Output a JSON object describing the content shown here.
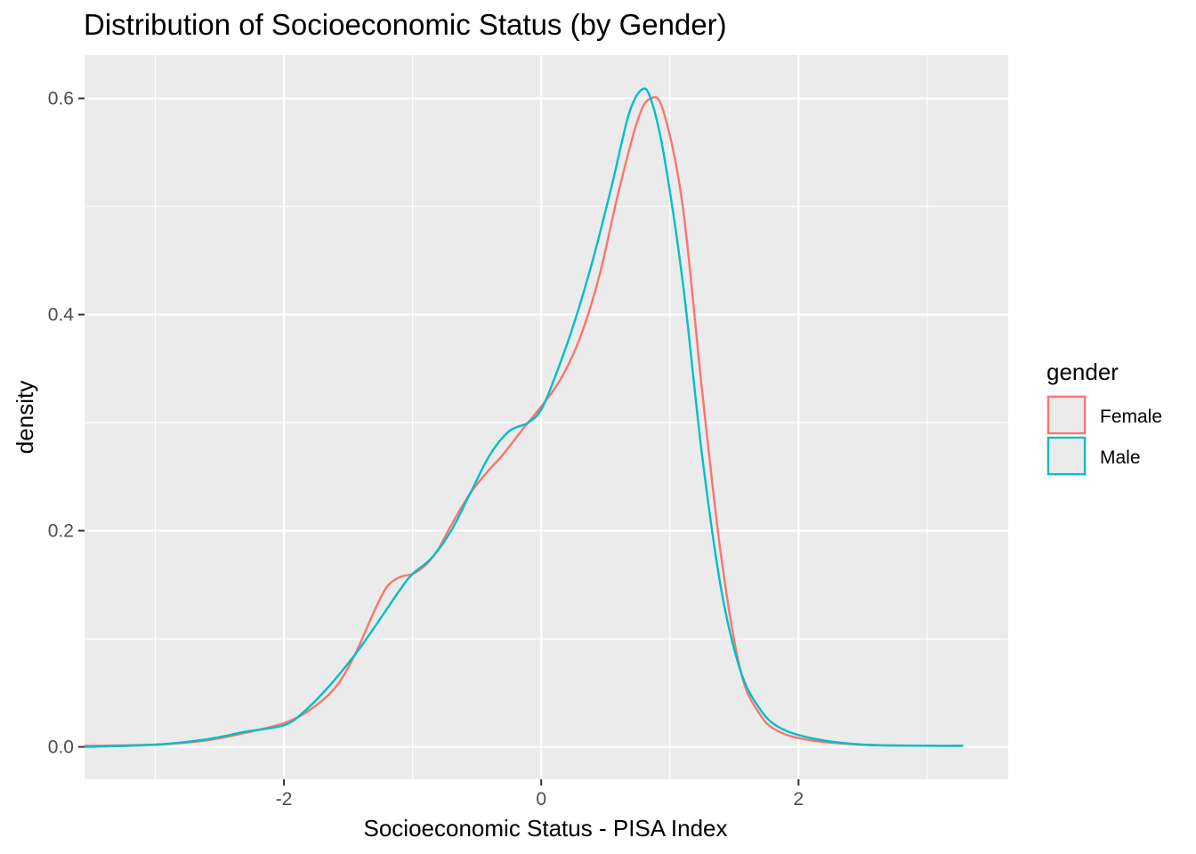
{
  "chart_data": {
    "type": "line",
    "title": "Distribution of Socioeconomic Status (by Gender)",
    "xlabel": "Socioeconomic Status - PISA Index",
    "ylabel": "density",
    "xlim": [
      -3.55,
      3.63
    ],
    "ylim": [
      -0.03,
      0.64
    ],
    "x_ticks": [
      -2,
      0,
      2
    ],
    "x_tick_labels": [
      "-2",
      "0",
      "2"
    ],
    "y_ticks": [
      0.0,
      0.2,
      0.4,
      0.6
    ],
    "y_tick_labels": [
      "0.0",
      "0.2",
      "0.4",
      "0.6"
    ],
    "grid": true,
    "legend": {
      "title": "gender",
      "position": "right"
    },
    "series": [
      {
        "name": "Female",
        "color": "#F8766D",
        "points": [
          [
            -3.55,
            0.001
          ],
          [
            -3.0,
            0.002
          ],
          [
            -2.6,
            0.006
          ],
          [
            -2.3,
            0.013
          ],
          [
            -2.0,
            0.022
          ],
          [
            -1.8,
            0.034
          ],
          [
            -1.6,
            0.055
          ],
          [
            -1.45,
            0.085
          ],
          [
            -1.3,
            0.125
          ],
          [
            -1.2,
            0.148
          ],
          [
            -1.1,
            0.157
          ],
          [
            -1.0,
            0.16
          ],
          [
            -0.9,
            0.168
          ],
          [
            -0.8,
            0.183
          ],
          [
            -0.7,
            0.205
          ],
          [
            -0.55,
            0.235
          ],
          [
            -0.4,
            0.257
          ],
          [
            -0.3,
            0.27
          ],
          [
            -0.15,
            0.293
          ],
          [
            0.0,
            0.315
          ],
          [
            0.15,
            0.34
          ],
          [
            0.3,
            0.378
          ],
          [
            0.45,
            0.435
          ],
          [
            0.6,
            0.513
          ],
          [
            0.75,
            0.58
          ],
          [
            0.85,
            0.6
          ],
          [
            0.95,
            0.588
          ],
          [
            1.1,
            0.5
          ],
          [
            1.25,
            0.33
          ],
          [
            1.4,
            0.175
          ],
          [
            1.55,
            0.07
          ],
          [
            1.7,
            0.03
          ],
          [
            1.85,
            0.014
          ],
          [
            2.1,
            0.006
          ],
          [
            2.5,
            0.002
          ],
          [
            3.0,
            0.001
          ],
          [
            3.28,
            0.001
          ]
        ]
      },
      {
        "name": "Male",
        "color": "#00BFC4",
        "points": [
          [
            -3.55,
            0.0
          ],
          [
            -3.0,
            0.002
          ],
          [
            -2.6,
            0.007
          ],
          [
            -2.3,
            0.014
          ],
          [
            -2.0,
            0.02
          ],
          [
            -1.85,
            0.032
          ],
          [
            -1.65,
            0.056
          ],
          [
            -1.45,
            0.085
          ],
          [
            -1.3,
            0.11
          ],
          [
            -1.1,
            0.145
          ],
          [
            -1.0,
            0.16
          ],
          [
            -0.85,
            0.175
          ],
          [
            -0.7,
            0.2
          ],
          [
            -0.55,
            0.235
          ],
          [
            -0.4,
            0.27
          ],
          [
            -0.25,
            0.292
          ],
          [
            -0.1,
            0.3
          ],
          [
            0.0,
            0.312
          ],
          [
            0.1,
            0.34
          ],
          [
            0.25,
            0.39
          ],
          [
            0.4,
            0.45
          ],
          [
            0.55,
            0.52
          ],
          [
            0.68,
            0.585
          ],
          [
            0.78,
            0.608
          ],
          [
            0.85,
            0.6
          ],
          [
            0.95,
            0.55
          ],
          [
            1.1,
            0.43
          ],
          [
            1.25,
            0.27
          ],
          [
            1.4,
            0.145
          ],
          [
            1.55,
            0.07
          ],
          [
            1.7,
            0.035
          ],
          [
            1.85,
            0.018
          ],
          [
            2.1,
            0.008
          ],
          [
            2.5,
            0.002
          ],
          [
            3.0,
            0.001
          ],
          [
            3.28,
            0.001
          ]
        ]
      }
    ]
  }
}
